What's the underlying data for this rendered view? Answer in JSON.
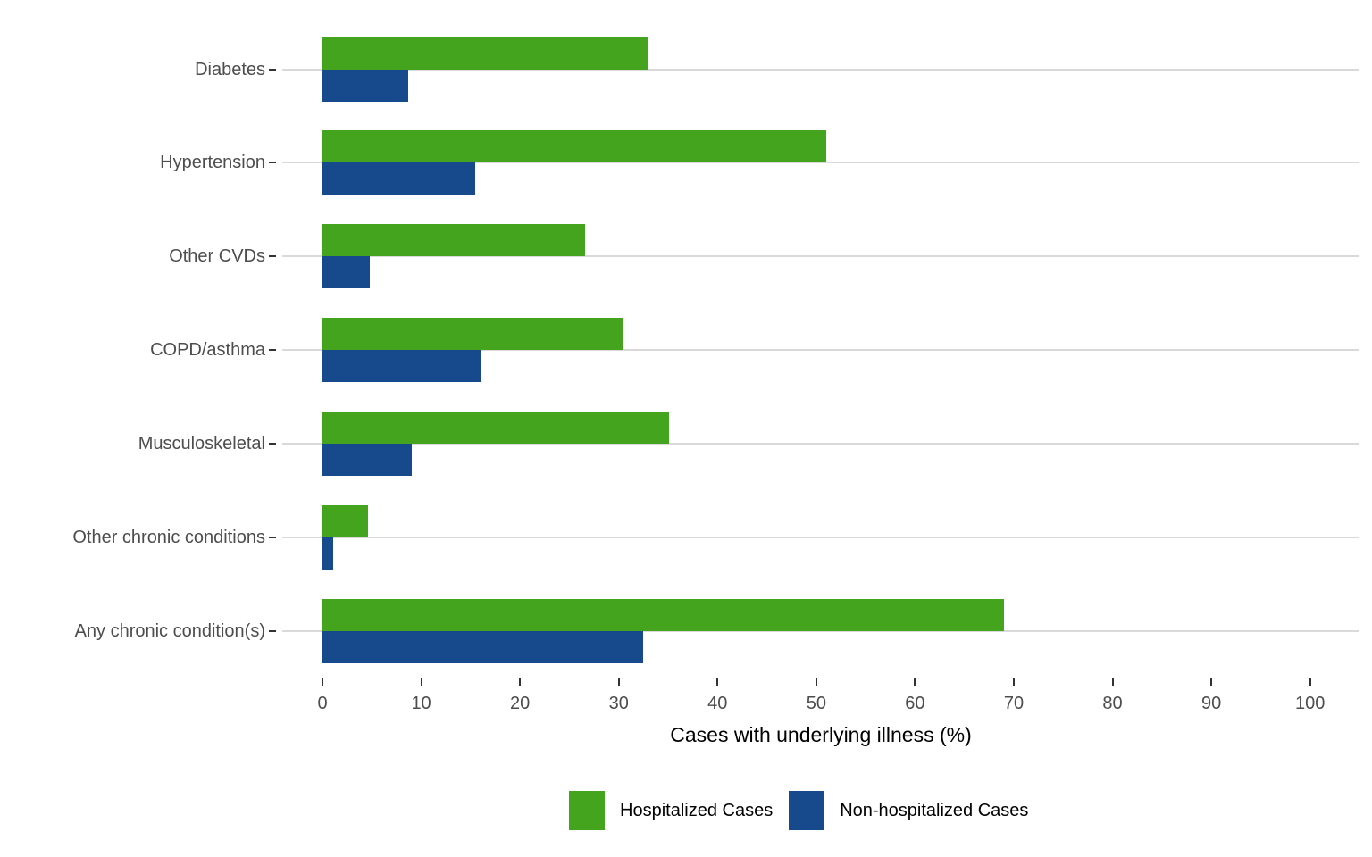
{
  "chart_data": {
    "type": "bar",
    "orientation": "horizontal",
    "title": "",
    "xlabel": "Cases with underlying illness (%)",
    "ylabel": "",
    "categories": [
      "Diabetes",
      "Hypertension",
      "Other CVDs",
      "COPD/asthma",
      "Musculoskeletal",
      "Other chronic conditions",
      "Any chronic condition(s)"
    ],
    "series": [
      {
        "name": "Hospitalized Cases",
        "color": "#44a41d",
        "values": [
          33,
          51,
          26.6,
          30.5,
          35.1,
          4.6,
          69
        ]
      },
      {
        "name": "Non-hospitalized Cases",
        "color": "#174a8c",
        "values": [
          8.7,
          15.5,
          4.8,
          16.1,
          9.0,
          1.1,
          32.5
        ]
      }
    ],
    "x_ticks": [
      0,
      10,
      20,
      30,
      40,
      50,
      60,
      70,
      80,
      90,
      100
    ],
    "xlim": [
      0,
      105
    ],
    "grid": "horizontal-major-only",
    "gridline_color": "#d9d9d9",
    "axis_text_color": "#4d4d4d",
    "legend_position": "bottom"
  }
}
